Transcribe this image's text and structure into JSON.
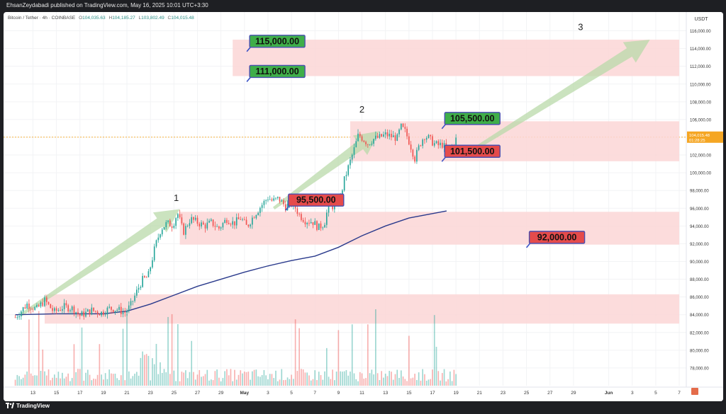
{
  "publisher_line": "EhsanZeydabadi published on TradingView.com, May 16, 2025 10:01 UTC+3:30",
  "symbol": {
    "name": "Bitcoin / Tether · 4h · COINBASE",
    "open_label": "O",
    "open": "104,035.63",
    "high_label": "H",
    "high": "104,185.27",
    "low_label": "L",
    "low": "103,802.49",
    "close_label": "C",
    "close": "104,015.48"
  },
  "footer": {
    "brand": "TradingView"
  },
  "chart_data": {
    "type": "candlestick",
    "currency_label": "USDT",
    "y_range": [
      76000,
      117000
    ],
    "y_ticks": [
      78000,
      80000,
      82000,
      84000,
      86000,
      88000,
      90000,
      92000,
      94000,
      96000,
      98000,
      100000,
      102000,
      104000,
      106000,
      108000,
      110000,
      112000,
      114000,
      116000
    ],
    "y_tick_labels": [
      "78,000.00",
      "80,000.00",
      "82,000.00",
      "84,000.00",
      "86,000.00",
      "88,000.00",
      "90,000.00",
      "92,000.00",
      "94,000.00",
      "96,000.00",
      "98,000.00",
      "100,000.00",
      "102,000.00",
      "104,000.00",
      "106,000.00",
      "108,000.00",
      "110,000.00",
      "112,000.00",
      "114,000.00",
      "116,000.00"
    ],
    "x_ticks": [
      {
        "day": 13,
        "label": "13"
      },
      {
        "day": 15,
        "label": "15"
      },
      {
        "day": 17,
        "label": "17"
      },
      {
        "day": 19,
        "label": "19"
      },
      {
        "day": 21,
        "label": "21"
      },
      {
        "day": 23,
        "label": "23"
      },
      {
        "day": 25,
        "label": "25"
      },
      {
        "day": 27,
        "label": "27"
      },
      {
        "day": 29,
        "label": "29"
      },
      {
        "day": 31,
        "label": "May",
        "bold": true
      },
      {
        "day": 33,
        "label": "3"
      },
      {
        "day": 35,
        "label": "5"
      },
      {
        "day": 37,
        "label": "7"
      },
      {
        "day": 39,
        "label": "9"
      },
      {
        "day": 41,
        "label": "11"
      },
      {
        "day": 43,
        "label": "13"
      },
      {
        "day": 45,
        "label": "15"
      },
      {
        "day": 47,
        "label": "17"
      },
      {
        "day": 49,
        "label": "19"
      },
      {
        "day": 51,
        "label": "21"
      },
      {
        "day": 53,
        "label": "23"
      },
      {
        "day": 55,
        "label": "25"
      },
      {
        "day": 57,
        "label": "27"
      },
      {
        "day": 59,
        "label": "29"
      },
      {
        "day": 62,
        "label": "Jun",
        "bold": true
      },
      {
        "day": 64,
        "label": "3"
      },
      {
        "day": 66,
        "label": "5"
      },
      {
        "day": 68,
        "label": "7"
      }
    ],
    "price_path": [
      [
        11.5,
        83700
      ],
      [
        12.5,
        85200
      ],
      [
        13.3,
        84600
      ],
      [
        14,
        85600
      ],
      [
        14.8,
        84300
      ],
      [
        15.6,
        84900
      ],
      [
        16.4,
        84700
      ],
      [
        17,
        83900
      ],
      [
        18,
        84500
      ],
      [
        18.8,
        84200
      ],
      [
        19.5,
        84700
      ],
      [
        20.2,
        84600
      ],
      [
        20.8,
        84200
      ],
      [
        21.3,
        85000
      ],
      [
        21.8,
        86500
      ],
      [
        22.3,
        87900
      ],
      [
        22.8,
        88300
      ],
      [
        23.4,
        91700
      ],
      [
        23.9,
        93700
      ],
      [
        24.4,
        94300
      ],
      [
        24.9,
        94100
      ],
      [
        25.3,
        95500
      ],
      [
        25.8,
        93300
      ],
      [
        26.4,
        94800
      ],
      [
        27,
        94400
      ],
      [
        27.6,
        94000
      ],
      [
        28.2,
        94400
      ],
      [
        28.8,
        93700
      ],
      [
        29.5,
        94800
      ],
      [
        30.1,
        94300
      ],
      [
        30.7,
        94900
      ],
      [
        31.2,
        93900
      ],
      [
        31.8,
        95200
      ],
      [
        32.5,
        96400
      ],
      [
        33,
        97200
      ],
      [
        33.4,
        96800
      ],
      [
        33.9,
        97100
      ],
      [
        34.5,
        96200
      ],
      [
        35.1,
        96600
      ],
      [
        35.7,
        95200
      ],
      [
        36.2,
        94600
      ],
      [
        36.8,
        94500
      ],
      [
        37.3,
        93800
      ],
      [
        37.8,
        94300
      ],
      [
        38.2,
        96600
      ],
      [
        38.6,
        96100
      ],
      [
        39.1,
        96900
      ],
      [
        39.5,
        99200
      ],
      [
        39.9,
        100900
      ],
      [
        40.3,
        102500
      ],
      [
        40.7,
        104300
      ],
      [
        41.1,
        103800
      ],
      [
        41.5,
        103300
      ],
      [
        42,
        103800
      ],
      [
        42.5,
        104000
      ],
      [
        43,
        104300
      ],
      [
        43.5,
        104100
      ],
      [
        44,
        103900
      ],
      [
        44.3,
        105200
      ],
      [
        44.7,
        104600
      ],
      [
        45.1,
        103200
      ],
      [
        45.5,
        101600
      ],
      [
        45.9,
        103100
      ],
      [
        46.3,
        104200
      ],
      [
        46.7,
        103900
      ],
      [
        47.1,
        103300
      ],
      [
        47.5,
        103100
      ],
      [
        47.9,
        103200
      ],
      [
        48.3,
        102200
      ],
      [
        48.7,
        103100
      ],
      [
        49.1,
        104000
      ]
    ],
    "moving_average": [
      [
        11.5,
        84000
      ],
      [
        15,
        84100
      ],
      [
        19,
        84100
      ],
      [
        21,
        84400
      ],
      [
        23,
        85200
      ],
      [
        25,
        86200
      ],
      [
        27,
        87200
      ],
      [
        29,
        88000
      ],
      [
        31,
        88800
      ],
      [
        33,
        89500
      ],
      [
        35,
        90100
      ],
      [
        37,
        90600
      ],
      [
        39,
        91600
      ],
      [
        41,
        92900
      ],
      [
        43,
        94000
      ],
      [
        45,
        94900
      ],
      [
        47,
        95400
      ],
      [
        48.2,
        95700
      ]
    ],
    "zones": [
      {
        "from_day": 30,
        "to_day": 68,
        "y_low": 110900,
        "y_high": 115000
      },
      {
        "from_day": 40,
        "to_day": 68,
        "y_low": 101300,
        "y_high": 105800
      },
      {
        "from_day": 25.5,
        "to_day": 68,
        "y_low": 91900,
        "y_high": 95600
      },
      {
        "from_day": 14,
        "to_day": 68,
        "y_low": 83000,
        "y_high": 86300
      }
    ],
    "levels": [
      {
        "text": "115,000.00",
        "kind": "target",
        "day": 31.2,
        "price": 115500
      },
      {
        "text": "111,000.00",
        "kind": "target",
        "day": 31.2,
        "price": 112100
      },
      {
        "text": "105,500.00",
        "kind": "target",
        "day": 47.8,
        "price": 106800
      },
      {
        "text": "101,500.00",
        "kind": "support",
        "day": 47.8,
        "price": 103100
      },
      {
        "text": "95,500.00",
        "kind": "support",
        "day": 34.5,
        "price": 97600
      },
      {
        "text": "92,000.00",
        "kind": "support",
        "day": 55,
        "price": 93400
      }
    ],
    "wave_labels": [
      {
        "text": "1",
        "day": 25.2,
        "price": 96800
      },
      {
        "text": "2",
        "day": 41,
        "price": 106800
      },
      {
        "text": "3",
        "day": 59.6,
        "price": 116100
      }
    ],
    "arrows": [
      {
        "from": [
          12,
          84000
        ],
        "to": [
          25.5,
          95900
        ]
      },
      {
        "from": [
          33.5,
          96000
        ],
        "to": [
          42.5,
          104700
        ]
      },
      {
        "from": [
          49.5,
          101800
        ],
        "to": [
          65.5,
          115000
        ]
      }
    ],
    "last_price": "104,015.48",
    "last_price_value": 104015,
    "countdown": "01:28:25",
    "colors": {
      "up": "#26a69a",
      "down": "#ef5350",
      "moving_average": "#2a3a8c",
      "zone": "#fbd6d6",
      "target_box": "#3fae49",
      "support_box": "#e54b4b",
      "arrow": "#b9d9aa",
      "last_price_tag": "#f5a623"
    },
    "volume_visible": true
  }
}
